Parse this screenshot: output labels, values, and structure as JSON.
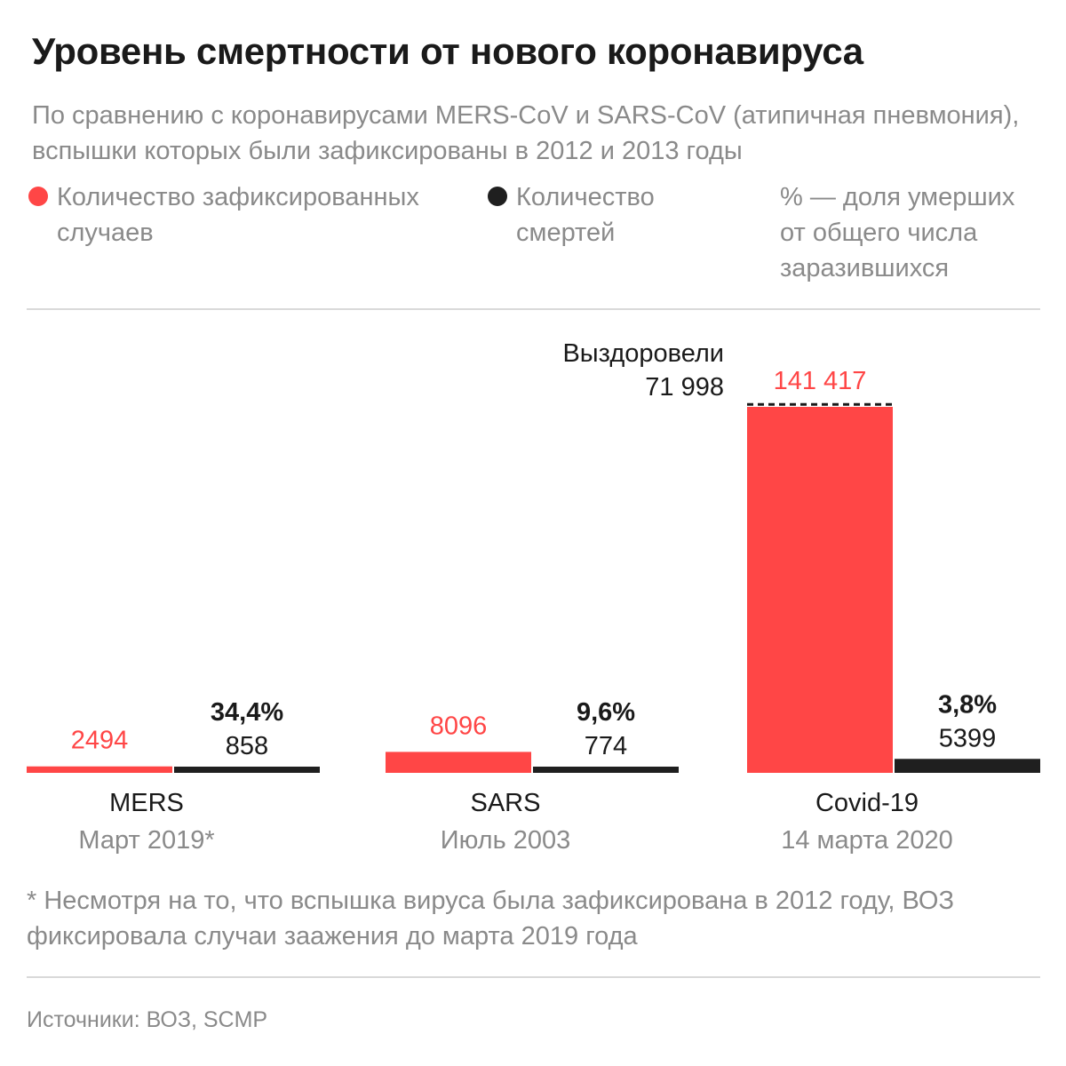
{
  "title": "Уровень смертности от нового коронавируса",
  "subtitle": "По сравнению с коронавирусами MERS-CoV и SARS-CoV (атипичная пневмония), вспышки которых были зафиксированы в 2012 и 2013 годы",
  "legend": {
    "cases_label": "Количество зафиксированных случаев",
    "deaths_label": "Количество смертей",
    "pct_label": "% — доля умерших от общего числа заразившихся"
  },
  "colors": {
    "cases": "#ff4646",
    "deaths": "#1f1f1f",
    "muted": "#8a8a8a"
  },
  "chart_data": {
    "type": "bar",
    "categories": [
      "MERS",
      "SARS",
      "Covid-19"
    ],
    "category_dates": [
      "Март 2019*",
      "Июль 2003",
      "14 марта 2020"
    ],
    "series": [
      {
        "name": "Количество зафиксированных случаев",
        "values": [
          2494,
          8096,
          141417
        ],
        "labels": [
          "2494",
          "8096",
          "141 417"
        ]
      },
      {
        "name": "Количество смертей",
        "values": [
          858,
          774,
          5399
        ],
        "labels": [
          "858",
          "774",
          "5399"
        ]
      }
    ],
    "death_rate_labels": [
      "34,4%",
      "9,6%",
      "3,8%"
    ],
    "annotation": {
      "category": "Covid-19",
      "value": 71998,
      "text_line1": "Выздоровели",
      "text_line2": "71 998"
    }
  },
  "footnote": "* Несмотря на то, что вспышка вируса была зафиксирована в 2012 году, ВОЗ фиксировала случаи заажения до марта 2019 года",
  "source": "Источники: ВОЗ, SCMP"
}
